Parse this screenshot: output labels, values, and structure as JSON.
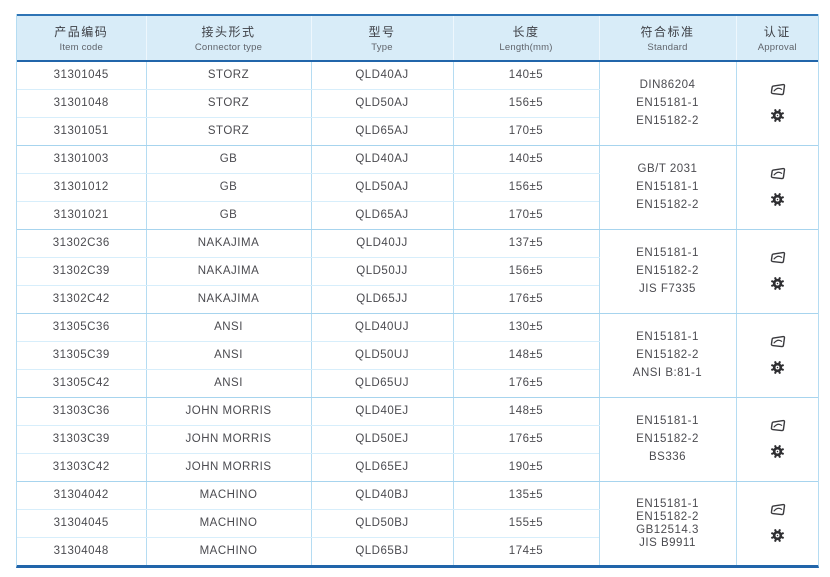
{
  "table": {
    "header": {
      "columns": [
        {
          "zh": "产品编码",
          "en": "Item code"
        },
        {
          "zh": "接头形式",
          "en": "Connector type"
        },
        {
          "zh": "型号",
          "en": "Type"
        },
        {
          "zh": "长度",
          "en": "Length(mm)"
        },
        {
          "zh": "符合标准",
          "en": "Standard"
        },
        {
          "zh": "认证",
          "en": "Approval"
        }
      ]
    },
    "groups": [
      {
        "rows": [
          {
            "item_code": "31301045",
            "connector_type": "STORZ",
            "type": "QLD40AJ",
            "length": "140±5"
          },
          {
            "item_code": "31301048",
            "connector_type": "STORZ",
            "type": "QLD50AJ",
            "length": "156±5"
          },
          {
            "item_code": "31301051",
            "connector_type": "STORZ",
            "type": "QLD65AJ",
            "length": "170±5"
          }
        ],
        "standards": [
          "DIN86204",
          "EN15181-1",
          "EN15182-2"
        ]
      },
      {
        "rows": [
          {
            "item_code": "31301003",
            "connector_type": "GB",
            "type": "QLD40AJ",
            "length": "140±5"
          },
          {
            "item_code": "31301012",
            "connector_type": "GB",
            "type": "QLD50AJ",
            "length": "156±5"
          },
          {
            "item_code": "31301021",
            "connector_type": "GB",
            "type": "QLD65AJ",
            "length": "170±5"
          }
        ],
        "standards": [
          "GB/T 2031",
          "EN15181-1",
          "EN15182-2"
        ]
      },
      {
        "rows": [
          {
            "item_code": "31302C36",
            "connector_type": "NAKAJIMA",
            "type": "QLD40JJ",
            "length": "137±5"
          },
          {
            "item_code": "31302C39",
            "connector_type": "NAKAJIMA",
            "type": "QLD50JJ",
            "length": "156±5"
          },
          {
            "item_code": "31302C42",
            "connector_type": "NAKAJIMA",
            "type": "QLD65JJ",
            "length": "176±5"
          }
        ],
        "standards": [
          "EN15181-1",
          "EN15182-2",
          "JIS F7335"
        ]
      },
      {
        "rows": [
          {
            "item_code": "31305C36",
            "connector_type": "ANSI",
            "type": "QLD40UJ",
            "length": "130±5"
          },
          {
            "item_code": "31305C39",
            "connector_type": "ANSI",
            "type": "QLD50UJ",
            "length": "148±5"
          },
          {
            "item_code": "31305C42",
            "connector_type": "ANSI",
            "type": "QLD65UJ",
            "length": "176±5"
          }
        ],
        "standards": [
          "EN15181-1",
          "EN15182-2",
          "ANSI B:81-1"
        ]
      },
      {
        "rows": [
          {
            "item_code": "31303C36",
            "connector_type": "JOHN MORRIS",
            "type": "QLD40EJ",
            "length": "148±5"
          },
          {
            "item_code": "31303C39",
            "connector_type": "JOHN MORRIS",
            "type": "QLD50EJ",
            "length": "176±5"
          },
          {
            "item_code": "31303C42",
            "connector_type": "JOHN MORRIS",
            "type": "QLD65EJ",
            "length": "190±5"
          }
        ],
        "standards": [
          "EN15181-1",
          "EN15182-2",
          "BS336"
        ]
      },
      {
        "rows": [
          {
            "item_code": "31304042",
            "connector_type": "MACHINO",
            "type": "QLD40BJ",
            "length": "135±5"
          },
          {
            "item_code": "31304045",
            "connector_type": "MACHINO",
            "type": "QLD50BJ",
            "length": "155±5"
          },
          {
            "item_code": "31304048",
            "connector_type": "MACHINO",
            "type": "QLD65BJ",
            "length": "174±5"
          }
        ],
        "standards": [
          "EN15181-1",
          "EN15182-2",
          "GB12514.3",
          "JIS B9911"
        ]
      }
    ],
    "icons": {
      "approval": [
        "certificate-stamp-icon",
        "gear-badge-icon"
      ]
    },
    "colors": {
      "header_bg": "#d8ecf8",
      "top_border": "#2e74b5",
      "strong_border": "#2165aa",
      "column_line": "#b5dcf2",
      "row_line": "#d7eefb",
      "group_line": "#a7d4ee",
      "text": "#4b4b50"
    }
  }
}
